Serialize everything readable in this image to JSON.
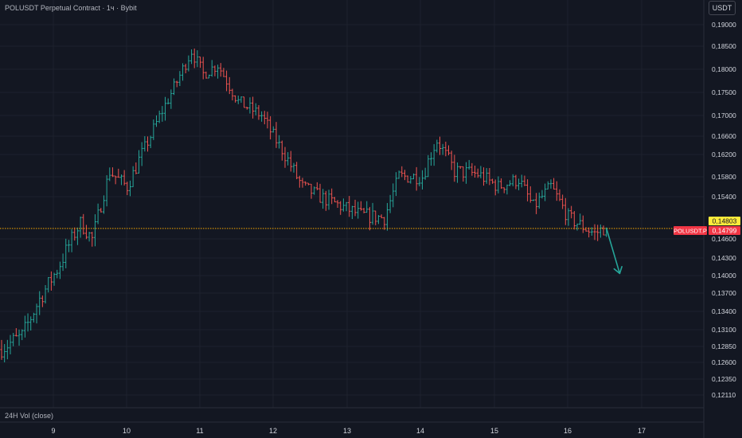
{
  "header": {
    "title": "POLUSDT Perpetual Contract · 1ч · Bybit",
    "currency": "USDT"
  },
  "volume_pane": {
    "label": "24H Vol (close)"
  },
  "price_tags": {
    "marker_value": "0,14803",
    "symbol_label": "POLUSDT.P",
    "last_price": "0,14799"
  },
  "colors": {
    "background": "#131722",
    "up": "#26a69a",
    "down": "#ef5350",
    "price_line": "#f7a600",
    "arrow": "#26a69a",
    "marker_tag": "#ffeb3b",
    "price_tag": "#f23645"
  },
  "chart_data": {
    "type": "ohlc",
    "timeframe": "1h",
    "x_ticks": [
      "9",
      "10",
      "11",
      "12",
      "13",
      "14",
      "15",
      "16",
      "17"
    ],
    "y_ticks": [
      "0,19000",
      "0,18500",
      "0,18000",
      "0,17500",
      "0,17000",
      "0,16600",
      "0,16200",
      "0,15800",
      "0,15400",
      "0,14600",
      "0,14300",
      "0,14000",
      "0,13700",
      "0,13400",
      "0,13100",
      "0,12850",
      "0,12600",
      "0,12350",
      "0,12110"
    ],
    "y_tick_values": [
      0.19,
      0.185,
      0.18,
      0.175,
      0.17,
      0.166,
      0.162,
      0.158,
      0.154,
      0.146,
      0.143,
      0.14,
      0.137,
      0.134,
      0.131,
      0.1285,
      0.126,
      0.1235,
      0.1211
    ],
    "last_price": 0.14799,
    "trend_path": [
      {
        "t": 0,
        "p": 0.128
      },
      {
        "t": 8,
        "p": 0.13
      },
      {
        "t": 14,
        "p": 0.136
      },
      {
        "t": 20,
        "p": 0.141
      },
      {
        "t": 28,
        "p": 0.149
      },
      {
        "t": 32,
        "p": 0.146
      },
      {
        "t": 38,
        "p": 0.159
      },
      {
        "t": 44,
        "p": 0.156
      },
      {
        "t": 52,
        "p": 0.166
      },
      {
        "t": 60,
        "p": 0.176
      },
      {
        "t": 66,
        "p": 0.184
      },
      {
        "t": 70,
        "p": 0.179
      },
      {
        "t": 75,
        "p": 0.181
      },
      {
        "t": 82,
        "p": 0.173
      },
      {
        "t": 90,
        "p": 0.17
      },
      {
        "t": 96,
        "p": 0.164
      },
      {
        "t": 104,
        "p": 0.156
      },
      {
        "t": 110,
        "p": 0.154
      },
      {
        "t": 118,
        "p": 0.152
      },
      {
        "t": 124,
        "p": 0.1505
      },
      {
        "t": 132,
        "p": 0.15
      },
      {
        "t": 137,
        "p": 0.158
      },
      {
        "t": 145,
        "p": 0.158
      },
      {
        "t": 150,
        "p": 0.165
      },
      {
        "t": 156,
        "p": 0.159
      },
      {
        "t": 164,
        "p": 0.1585
      },
      {
        "t": 171,
        "p": 0.156
      },
      {
        "t": 178,
        "p": 0.1575
      },
      {
        "t": 183,
        "p": 0.152
      },
      {
        "t": 189,
        "p": 0.156
      },
      {
        "t": 195,
        "p": 0.15
      },
      {
        "t": 201,
        "p": 0.148
      },
      {
        "t": 204,
        "p": 0.147
      },
      {
        "t": 207,
        "p": 0.148
      }
    ],
    "projection": {
      "from": {
        "t": 207,
        "p": 0.148
      },
      "to": {
        "t": 211,
        "p": 0.142
      }
    }
  }
}
